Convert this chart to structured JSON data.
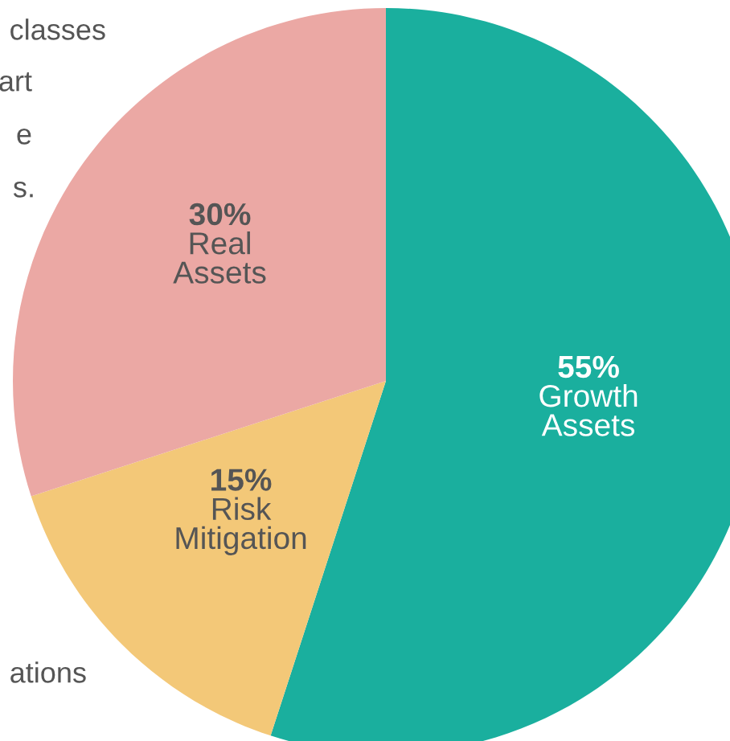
{
  "chart_data": {
    "type": "pie",
    "categories": [
      "Growth Assets",
      "Risk Mitigation",
      "Real Assets"
    ],
    "values": [
      55,
      15,
      30
    ],
    "value_labels": [
      "55%",
      "15%",
      "30%"
    ],
    "colors": [
      "#1aaf9e",
      "#f3c878",
      "#eba8a4"
    ],
    "annotations": [
      "classes",
      "art",
      "e",
      "s.",
      "ations"
    ]
  }
}
